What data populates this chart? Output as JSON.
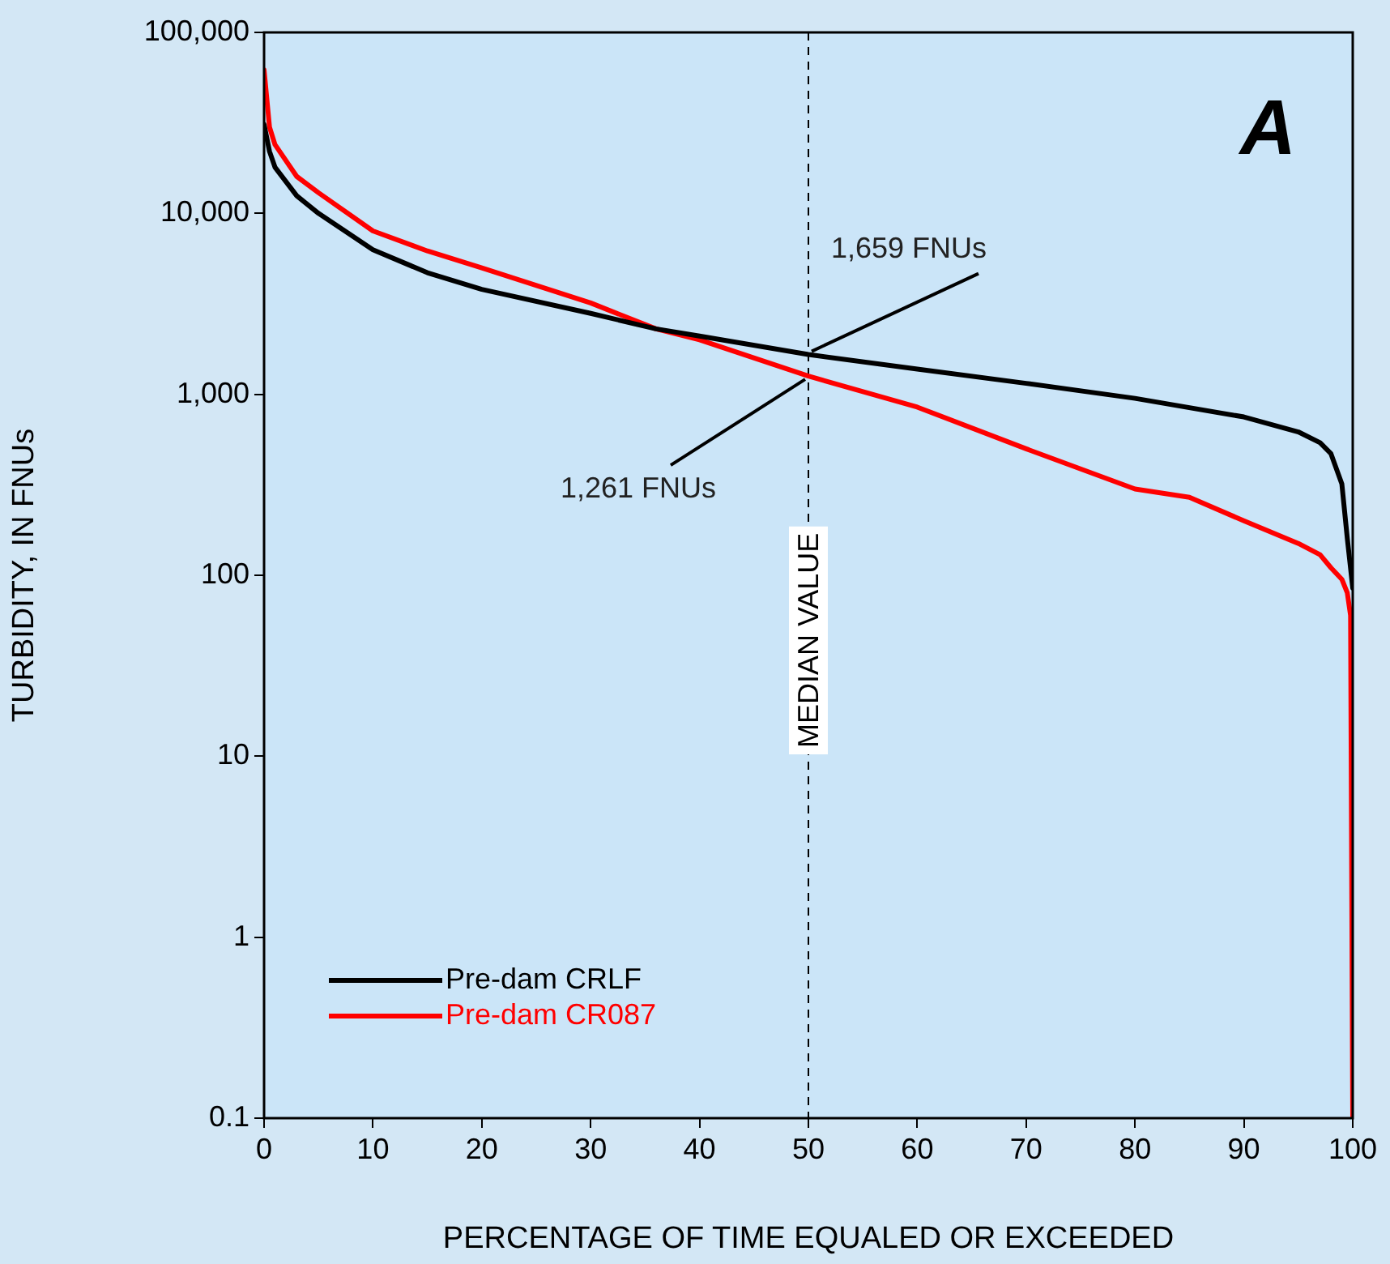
{
  "chart_data": {
    "type": "line",
    "xlabel": "PERCENTAGE OF TIME EQUALED OR EXCEEDED",
    "ylabel": "TURBIDITY, IN FNUs",
    "xlim": [
      0,
      100
    ],
    "xticks": [
      0,
      10,
      20,
      30,
      40,
      50,
      60,
      70,
      80,
      90,
      100
    ],
    "ylim": [
      0.1,
      100000
    ],
    "yticks": [
      0.1,
      1,
      10,
      100,
      {
        "value": 1000,
        "label": "1,000"
      },
      {
        "value": 10000,
        "label": "10,000"
      },
      {
        "value": 100000,
        "label": "100,000"
      }
    ],
    "log": "y",
    "grid": false,
    "legend": "bottom left",
    "marker": "none",
    "line_style": "solid",
    "series": [
      {
        "name": "Pre-dam CRLF",
        "color": "#000000",
        "x": [
          0,
          0.5,
          1,
          3,
          5,
          10,
          15,
          20,
          30,
          36,
          40,
          50,
          60,
          70,
          80,
          90,
          95,
          97,
          98,
          99,
          99.5,
          100
        ],
        "values": [
          31000,
          22000,
          18000,
          12500,
          10000,
          6300,
          4700,
          3800,
          2800,
          2300,
          2100,
          1659,
          1380,
          1150,
          950,
          750,
          620,
          540,
          470,
          320,
          160,
          85
        ]
      },
      {
        "name": "Pre-dam CR087",
        "color": "#ff0000",
        "x": [
          0,
          0.5,
          1,
          3,
          5,
          10,
          15,
          20,
          30,
          36,
          40,
          50,
          60,
          70,
          80,
          85,
          90,
          95,
          97,
          98,
          99,
          99.5,
          99.8,
          100
        ],
        "values": [
          62000,
          30000,
          24000,
          16000,
          13000,
          8000,
          6200,
          5000,
          3200,
          2300,
          2000,
          1261,
          850,
          500,
          300,
          270,
          200,
          150,
          130,
          110,
          95,
          80,
          60,
          0.1
        ]
      }
    ],
    "ref_lines": [
      {
        "axis": "x",
        "value": 50,
        "label": "MEDIAN VALUE",
        "color": "#000000",
        "line_style": "dashed"
      }
    ],
    "annotations": [
      "A",
      {
        "text": "1,659 FNUs",
        "x": 50,
        "y": 1659
      },
      {
        "text": "1,261 FNUs",
        "x": 50,
        "y": 1261
      }
    ]
  }
}
